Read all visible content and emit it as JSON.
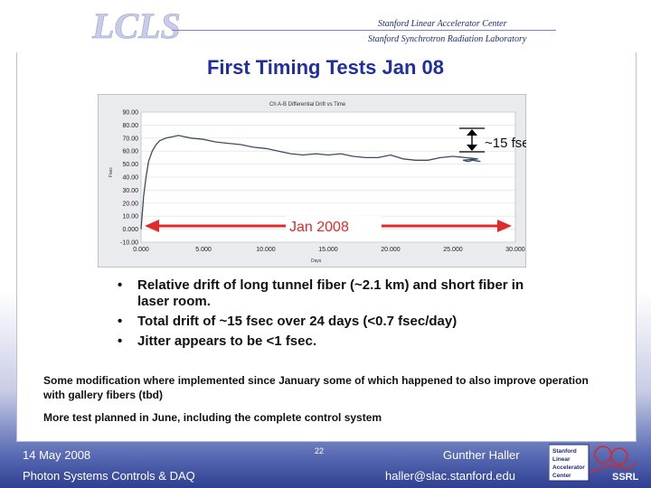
{
  "header": {
    "logo_text": "LCLS",
    "line1": "Stanford Linear Accelerator Center",
    "line2": "Stanford Synchrotron Radiation Laboratory"
  },
  "title": "First Timing Tests Jan 08",
  "chart_data": {
    "type": "line",
    "title": "Ch A-B Differential Drift vs Time",
    "xlabel": "Days",
    "ylabel": "Fsec",
    "xlim": [
      0,
      30
    ],
    "ylim": [
      -10,
      90
    ],
    "x_ticks": [
      "0.000",
      "5.000",
      "10.000",
      "15.000",
      "20.000",
      "25.000",
      "30.000"
    ],
    "y_ticks": [
      "-10.00",
      "0.000",
      "10.00",
      "20.00",
      "30.00",
      "40.00",
      "50.00",
      "60.00",
      "70.00",
      "80.00",
      "90.00"
    ],
    "series": [
      {
        "x": [
          0,
          0.2,
          0.4,
          0.6,
          0.9,
          1.2,
          1.5,
          2,
          2.5,
          3,
          3.5,
          4,
          5,
          6,
          7,
          8,
          9,
          10,
          11,
          12,
          13,
          14,
          15,
          16,
          17,
          18,
          19,
          20,
          21,
          22,
          23,
          24,
          25,
          26,
          27,
          25.8,
          26.2,
          26.6,
          27.2
        ],
        "y": [
          0,
          25,
          40,
          52,
          60,
          65,
          68,
          70,
          71,
          72,
          71,
          70,
          69,
          67,
          66,
          65,
          63,
          62,
          60,
          58,
          57,
          58,
          57,
          58,
          56,
          55,
          55,
          57,
          54,
          53,
          53,
          55,
          56,
          55,
          54,
          53,
          52,
          53,
          52
        ]
      }
    ],
    "annotations": [
      {
        "text": "~15 fsec"
      },
      {
        "text": "Jan 2008"
      }
    ]
  },
  "bullets": [
    "Relative drift of long tunnel fiber (~2.1 km) and short fiber in laser room.",
    "Total drift of ~15 fsec over 24 days (<0.7 fsec/day)",
    "Jitter appears to be <1 fsec."
  ],
  "para1": "Some modification where implemented since January some of which happened to also improve operation with gallery fibers (tbd)",
  "para2": "More test planned in June, including the complete control system",
  "footer": {
    "date": "14 May 2008",
    "slide_number": "22",
    "author": "Gunther Haller",
    "project": "Photon Systems Controls & DAQ",
    "email": "haller@slac.stanford.edu",
    "ssrl_lines": [
      "Stanford",
      "Linear",
      "Accelerator",
      "Center"
    ],
    "ssrl_label": "SSRL"
  }
}
